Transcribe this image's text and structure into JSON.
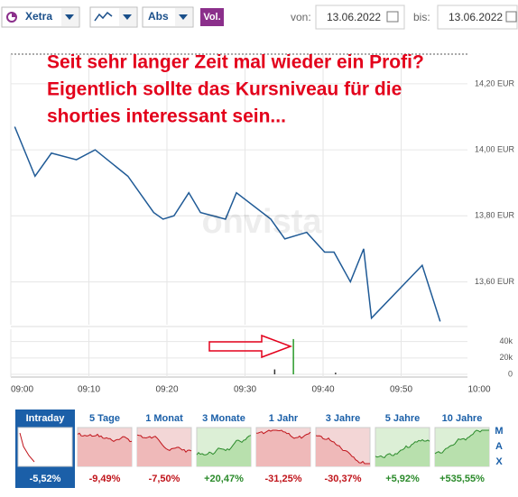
{
  "toolbar": {
    "exchange": "Xetra",
    "scale": "Abs",
    "volume_button": "Vol.",
    "from_label": "von:",
    "from_date": "13.06.2022",
    "to_label": "bis:",
    "to_date": "13.06.2022"
  },
  "annotation": [
    "Seit sehr langer Zeit mal wieder ein Profi?",
    "Eigentlich sollte das Kursniveau für die",
    "shorties interessant sein..."
  ],
  "watermark": "onvista",
  "chart_data": [
    {
      "type": "line",
      "color": "#1f5a96",
      "grid": true,
      "x": [
        540.5,
        543.1,
        545.2,
        548.4,
        550.8,
        555.0,
        558.3,
        559.5,
        560.9,
        562.8,
        564.3,
        567.5,
        568.9,
        573.3,
        575.1,
        577.9,
        580.2,
        581.4,
        583.5,
        585.2,
        586.2,
        592.7,
        595.0
      ],
      "values": [
        14.07,
        13.92,
        13.99,
        13.97,
        14.0,
        13.92,
        13.81,
        13.79,
        13.8,
        13.87,
        13.81,
        13.79,
        13.87,
        13.79,
        13.73,
        13.75,
        13.69,
        13.69,
        13.6,
        13.7,
        13.49,
        13.65,
        13.48
      ],
      "xlim": [
        540,
        600
      ],
      "xticks": [
        {
          "value": 540,
          "label": "09:00"
        },
        {
          "value": 550,
          "label": "09:10"
        },
        {
          "value": 560,
          "label": "09:20"
        },
        {
          "value": 570,
          "label": "09:30"
        },
        {
          "value": 580,
          "label": "09:40"
        },
        {
          "value": 590,
          "label": "09:50"
        },
        {
          "value": 600,
          "label": "10:00"
        }
      ],
      "ylim": [
        13.47,
        14.29
      ],
      "yticks": [
        {
          "value": 13.6,
          "label": "13,60 EUR"
        },
        {
          "value": 13.8,
          "label": "13,80 EUR"
        },
        {
          "value": 14.0,
          "label": "14,00 EUR"
        },
        {
          "value": 14.2,
          "label": "14,20 EUR"
        }
      ]
    },
    {
      "type": "bar",
      "color": "#2a9a2a",
      "grid": true,
      "x": [
        573.8,
        576.2,
        581.6
      ],
      "values": [
        6000,
        43000,
        2000
      ],
      "xlim": [
        540,
        600
      ],
      "ylim": [
        0,
        55000
      ],
      "yticks": [
        0,
        {
          "value": 20000,
          "label": "20k"
        },
        {
          "value": 40000,
          "label": "40k"
        }
      ]
    }
  ],
  "periods": [
    {
      "label": "Intraday",
      "change": "-5,52%"
    },
    {
      "label": "5 Tage",
      "change": "-9,49%"
    },
    {
      "label": "1 Monat",
      "change": "-7,50%"
    },
    {
      "label": "3 Monate",
      "change": "+20,47%"
    },
    {
      "label": "1 Jahr",
      "change": "-31,25%"
    },
    {
      "label": "3 Jahre",
      "change": "-30,37%"
    },
    {
      "label": "5 Jahre",
      "change": "+5,92%"
    },
    {
      "label": "10 Jahre",
      "change": "+535,55%"
    }
  ],
  "max_label": [
    "M",
    "A",
    "X"
  ]
}
